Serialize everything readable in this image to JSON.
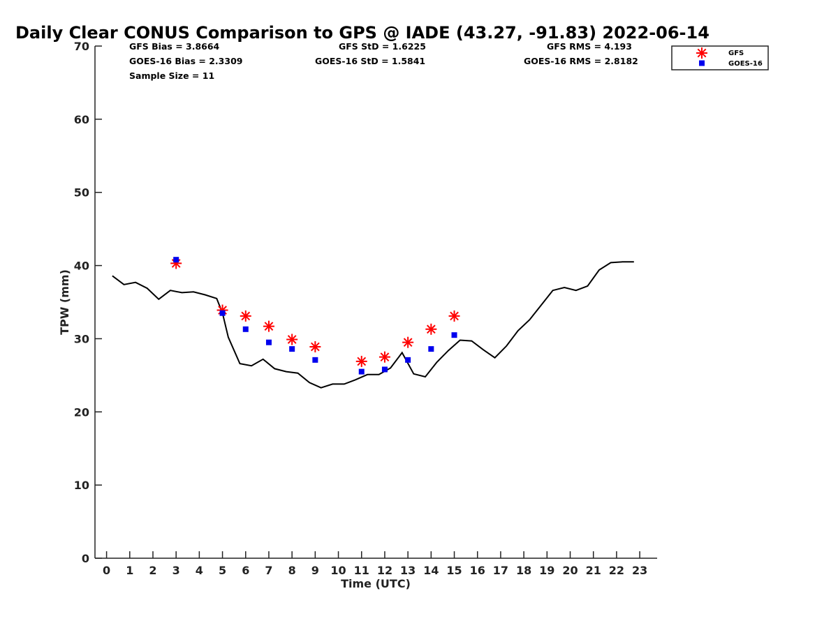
{
  "chart_data": {
    "type": "scatter",
    "title": "Daily Clear CONUS Comparison to GPS @ IADE (43.27, -91.83) 2022-06-14",
    "xlabel": "Time (UTC)",
    "ylabel": "TPW (mm)",
    "xlim": [
      -0.5,
      23.75
    ],
    "ylim": [
      0,
      70
    ],
    "xticks": [
      "0",
      "1",
      "2",
      "3",
      "4",
      "5",
      "6",
      "7",
      "8",
      "9",
      "10",
      "11",
      "12",
      "13",
      "14",
      "15",
      "16",
      "17",
      "18",
      "19",
      "20",
      "21",
      "22",
      "23"
    ],
    "yticks": [
      "0",
      "10",
      "20",
      "30",
      "40",
      "50",
      "60",
      "70"
    ],
    "stats": {
      "gfs_bias": "GFS Bias = 3.8664",
      "goes_bias": "GOES-16 Bias = 2.3309",
      "sample_size": "Sample Size = 11",
      "gfs_std": "GFS StD = 1.6225",
      "goes_std": "GOES-16 StD = 1.5841",
      "gfs_rms": "GFS RMS = 4.193",
      "goes_rms": "GOES-16 RMS = 2.8182"
    },
    "legend": {
      "position": "top-right",
      "entries": [
        "GFS",
        "GOES-16"
      ]
    },
    "colors": {
      "gfs": "#ff0000",
      "goes": "#0000ee",
      "gps": "#000000"
    },
    "series": [
      {
        "name": "GPS",
        "style": "line",
        "x": [
          0.25,
          0.75,
          1.25,
          1.75,
          2.25,
          2.75,
          3.25,
          3.75,
          4.25,
          4.75,
          5.0,
          5.25,
          5.75,
          6.25,
          6.75,
          7.25,
          7.75,
          8.25,
          8.75,
          9.25,
          9.75,
          10.25,
          10.75,
          11.25,
          11.75,
          12.25,
          12.75,
          13.25,
          13.75,
          14.25,
          14.75,
          15.25,
          15.75,
          16.25,
          16.75,
          17.25,
          17.75,
          18.25,
          18.75,
          19.25,
          19.75,
          20.25,
          20.75,
          21.25,
          21.75,
          22.25,
          22.75
        ],
        "y": [
          38.6,
          37.4,
          37.7,
          36.9,
          35.4,
          36.6,
          36.3,
          36.4,
          36.0,
          35.5,
          33.5,
          30.2,
          26.6,
          26.3,
          27.2,
          25.9,
          25.5,
          25.3,
          24.0,
          23.3,
          23.8,
          23.8,
          24.4,
          25.1,
          25.1,
          26.0,
          28.1,
          25.2,
          24.8,
          26.8,
          28.4,
          29.8,
          29.7,
          28.5,
          27.4,
          29.0,
          31.1,
          32.6,
          34.6,
          36.6,
          37.0,
          36.6,
          37.2,
          39.4,
          40.4,
          40.5,
          40.5
        ]
      },
      {
        "name": "GFS",
        "style": "asterisk",
        "x": [
          3,
          5,
          6,
          7,
          8,
          9,
          11,
          12,
          13,
          14,
          15
        ],
        "y": [
          40.3,
          33.9,
          33.1,
          31.7,
          29.9,
          28.9,
          26.9,
          27.5,
          29.5,
          31.3,
          33.1
        ]
      },
      {
        "name": "GOES-16",
        "style": "square",
        "x": [
          3,
          5,
          6,
          7,
          8,
          9,
          11,
          12,
          13,
          14,
          15
        ],
        "y": [
          40.8,
          33.5,
          31.3,
          29.5,
          28.6,
          27.1,
          25.5,
          25.8,
          27.1,
          28.6,
          30.5
        ]
      }
    ]
  }
}
